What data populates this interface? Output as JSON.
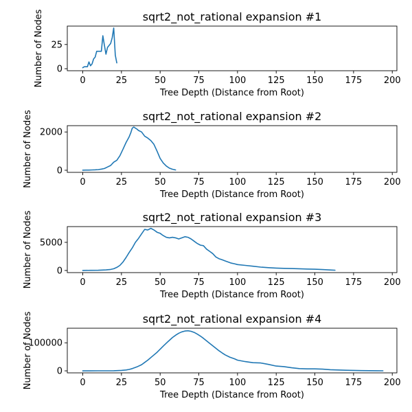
{
  "chart_data": [
    {
      "type": "line",
      "title": "sqrt2_not_rational expansion #1",
      "xlabel": "Tree Depth (Distance from Root)",
      "ylabel": "Number of Nodes",
      "xlim": [
        -10,
        203
      ],
      "ylim": [
        -2.1,
        44
      ],
      "xticks": [
        0,
        25,
        50,
        75,
        100,
        125,
        150,
        175,
        200
      ],
      "yticks": [
        0,
        25
      ],
      "ytick_labels": [
        "0",
        "25"
      ],
      "grid": false,
      "series": [
        {
          "color": "#1f77b4",
          "x": [
            0,
            1,
            2,
            3,
            4,
            5,
            6,
            7,
            8,
            9,
            10,
            11,
            12,
            13,
            14,
            15,
            16,
            17,
            18,
            19,
            20,
            21,
            22
          ],
          "y": [
            1,
            2,
            2,
            2,
            7,
            3,
            5,
            10,
            12,
            18,
            18,
            18,
            18,
            34,
            24,
            15,
            22,
            24,
            26,
            32,
            42,
            14,
            6
          ]
        }
      ]
    },
    {
      "type": "line",
      "title": "sqrt2_not_rational expansion #2",
      "xlabel": "Tree Depth (Distance from Root)",
      "ylabel": "Number of Nodes",
      "xlim": [
        -10,
        203
      ],
      "ylim": [
        -110,
        2330
      ],
      "xticks": [
        0,
        25,
        50,
        75,
        100,
        125,
        150,
        175,
        200
      ],
      "yticks": [
        0,
        2000
      ],
      "ytick_labels": [
        "0",
        "2000"
      ],
      "grid": false,
      "series": [
        {
          "color": "#1f77b4",
          "x": [
            0,
            2,
            4,
            6,
            8,
            10,
            12,
            14,
            16,
            18,
            20,
            22,
            24,
            26,
            28,
            30,
            31,
            32,
            33,
            34,
            35,
            36,
            38,
            40,
            42,
            44,
            46,
            48,
            50,
            52,
            54,
            56,
            58,
            60
          ],
          "y": [
            5,
            8,
            10,
            15,
            22,
            35,
            60,
            90,
            170,
            250,
            420,
            520,
            760,
            1100,
            1450,
            1750,
            1950,
            2200,
            2260,
            2200,
            2150,
            2080,
            2000,
            1780,
            1680,
            1550,
            1350,
            1000,
            620,
            380,
            220,
            110,
            50,
            15
          ]
        }
      ]
    },
    {
      "type": "line",
      "title": "sqrt2_not_rational expansion #3",
      "xlabel": "Tree Depth (Distance from Root)",
      "ylabel": "Number of Nodes",
      "xlim": [
        -10,
        203
      ],
      "ylim": [
        -380,
        7800
      ],
      "xticks": [
        0,
        25,
        50,
        75,
        100,
        125,
        150,
        175,
        200
      ],
      "yticks": [
        0,
        5000
      ],
      "ytick_labels": [
        "0",
        "5000"
      ],
      "grid": false,
      "series": [
        {
          "color": "#1f77b4",
          "x": [
            0,
            5,
            10,
            15,
            18,
            20,
            22,
            24,
            26,
            28,
            30,
            32,
            34,
            36,
            38,
            40,
            42,
            44,
            46,
            48,
            50,
            52,
            54,
            56,
            58,
            60,
            62,
            64,
            66,
            68,
            70,
            72,
            74,
            76,
            78,
            80,
            82,
            84,
            86,
            88,
            90,
            92,
            94,
            96,
            98,
            100,
            105,
            110,
            115,
            120,
            125,
            130,
            135,
            140,
            145,
            150,
            155,
            160,
            163
          ],
          "y": [
            10,
            20,
            40,
            100,
            180,
            300,
            550,
            900,
            1500,
            2300,
            3200,
            4000,
            5000,
            5700,
            6500,
            7300,
            7200,
            7500,
            7200,
            6800,
            6600,
            6200,
            5900,
            5800,
            5900,
            5800,
            5600,
            5800,
            6000,
            5900,
            5600,
            5200,
            4800,
            4500,
            4400,
            3800,
            3400,
            3000,
            2400,
            2100,
            1900,
            1700,
            1500,
            1300,
            1200,
            1050,
            900,
            750,
            600,
            500,
            420,
            380,
            340,
            300,
            260,
            220,
            160,
            90,
            50
          ]
        }
      ]
    },
    {
      "type": "line",
      "title": "sqrt2_not_rational expansion #4",
      "xlabel": "Tree Depth (Distance from Root)",
      "ylabel": "Number of Nodes",
      "xlim": [
        -10,
        203
      ],
      "ylim": [
        -7200,
        152000
      ],
      "xticks": [
        0,
        25,
        50,
        75,
        100,
        125,
        150,
        175,
        200
      ],
      "yticks": [
        0,
        100000
      ],
      "ytick_labels": [
        "0",
        "100000"
      ],
      "grid": false,
      "series": [
        {
          "color": "#1f77b4",
          "x": [
            0,
            5,
            10,
            15,
            20,
            25,
            28,
            30,
            32,
            35,
            38,
            40,
            42,
            45,
            48,
            50,
            52,
            55,
            58,
            60,
            62,
            64,
            66,
            68,
            70,
            72,
            74,
            76,
            78,
            80,
            82,
            85,
            88,
            90,
            92,
            95,
            98,
            100,
            105,
            110,
            115,
            120,
            125,
            130,
            135,
            140,
            145,
            150,
            155,
            160,
            165,
            170,
            175,
            180,
            185,
            190,
            194
          ],
          "y": [
            0,
            0,
            100,
            200,
            500,
            1500,
            3000,
            5000,
            8000,
            14000,
            22000,
            30000,
            38000,
            52000,
            66000,
            77000,
            88000,
            104000,
            119000,
            127000,
            134000,
            139000,
            142000,
            143000,
            141000,
            137000,
            131000,
            124000,
            116000,
            107000,
            98000,
            85000,
            72000,
            64000,
            57000,
            49000,
            43000,
            38000,
            33000,
            29000,
            28000,
            23000,
            17000,
            15000,
            11000,
            8000,
            7000,
            7000,
            6000,
            4000,
            3000,
            2000,
            1500,
            1000,
            600,
            300,
            200
          ]
        }
      ]
    }
  ]
}
